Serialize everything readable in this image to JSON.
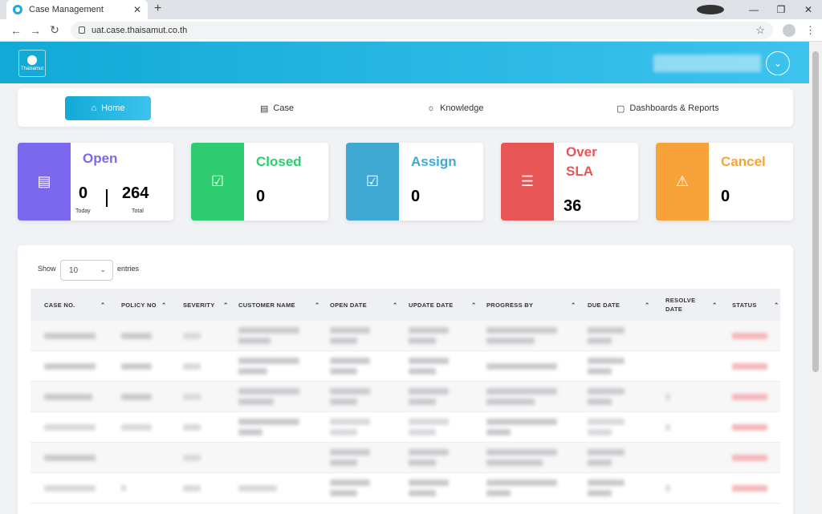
{
  "browser": {
    "tab_title": "Case Management",
    "url": "uat.case.thaisamut.co.th"
  },
  "header": {
    "logo_text": "Thaisamut"
  },
  "nav": {
    "items": [
      {
        "label": "Home",
        "icon": "home-icon"
      },
      {
        "label": "Case",
        "icon": "document-icon"
      },
      {
        "label": "Knowledge",
        "icon": "lightbulb-icon"
      },
      {
        "label": "Dashboards & Reports",
        "icon": "clipboard-icon"
      }
    ]
  },
  "stats": {
    "open": {
      "title": "Open",
      "today": "0",
      "today_label": "Today",
      "total": "264",
      "total_label": "Total",
      "color": "#7b68ee"
    },
    "closed": {
      "title": "Closed",
      "value": "0",
      "color": "#2ecc71"
    },
    "assign": {
      "title": "Assign",
      "value": "0",
      "color": "#3fa9d4"
    },
    "oversla": {
      "title_line1": "Over",
      "title_line2": "SLA",
      "value": "36",
      "color": "#e85555"
    },
    "cancel": {
      "title": "Cancel",
      "value": "0",
      "color": "#f7a33a"
    }
  },
  "table": {
    "show_label": "Show",
    "page_size": "10",
    "entries_label": "entries",
    "columns": [
      "CASE NO.",
      "POLICY NO",
      "SEVERITY",
      "CUSTOMER NAME",
      "OPEN DATE",
      "UPDATE DATE",
      "PROGRESS BY",
      "DUE DATE",
      "RESOLVE DATE",
      "STATUS"
    ]
  }
}
